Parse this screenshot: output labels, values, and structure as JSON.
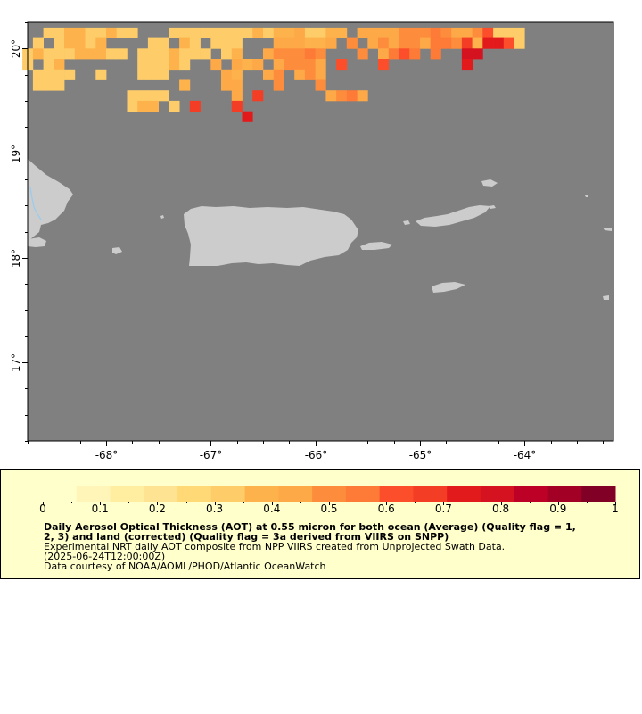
{
  "map": {
    "lon_range": [
      -68.75,
      -63.15
    ],
    "lat_range": [
      16.25,
      20.25
    ],
    "background_color": "#808080",
    "land_color": "#cccccc",
    "lon_ticks": [
      {
        "value": -68,
        "label": "-68°"
      },
      {
        "value": -67,
        "label": "-67°"
      },
      {
        "value": -66,
        "label": "-66°"
      },
      {
        "value": -65,
        "label": "-65°"
      },
      {
        "value": -64,
        "label": "-64°"
      }
    ],
    "lat_ticks": [
      {
        "value": 20,
        "label": "20°"
      },
      {
        "value": 19,
        "label": "19°"
      },
      {
        "value": 18,
        "label": "18°"
      },
      {
        "value": 17,
        "label": "17°"
      }
    ],
    "aot_cells": [
      [
        -68.55,
        20.15,
        0.35
      ],
      [
        -68.45,
        20.15,
        0.35
      ],
      [
        -68.35,
        20.15,
        0.4
      ],
      [
        -68.25,
        20.15,
        0.4
      ],
      [
        -68.15,
        20.15,
        0.35
      ],
      [
        -68.05,
        20.15,
        0.35
      ],
      [
        -67.95,
        20.15,
        0.4
      ],
      [
        -67.85,
        20.15,
        0.35
      ],
      [
        -67.75,
        20.15,
        0.35
      ],
      [
        -67.35,
        20.15,
        0.35
      ],
      [
        -67.25,
        20.15,
        0.35
      ],
      [
        -67.15,
        20.15,
        0.35
      ],
      [
        -67.05,
        20.15,
        0.35
      ],
      [
        -66.95,
        20.15,
        0.35
      ],
      [
        -66.85,
        20.15,
        0.35
      ],
      [
        -66.75,
        20.15,
        0.35
      ],
      [
        -66.65,
        20.15,
        0.35
      ],
      [
        -66.55,
        20.15,
        0.4
      ],
      [
        -66.45,
        20.15,
        0.35
      ],
      [
        -66.35,
        20.15,
        0.4
      ],
      [
        -66.25,
        20.15,
        0.4
      ],
      [
        -66.15,
        20.15,
        0.45
      ],
      [
        -66.05,
        20.15,
        0.35
      ],
      [
        -65.95,
        20.15,
        0.35
      ],
      [
        -65.85,
        20.15,
        0.4
      ],
      [
        -65.75,
        20.15,
        0.4
      ],
      [
        -65.55,
        20.15,
        0.45
      ],
      [
        -65.45,
        20.15,
        0.45
      ],
      [
        -65.35,
        20.15,
        0.45
      ],
      [
        -65.25,
        20.15,
        0.45
      ],
      [
        -65.15,
        20.15,
        0.5
      ],
      [
        -65.05,
        20.15,
        0.5
      ],
      [
        -64.95,
        20.15,
        0.5
      ],
      [
        -64.85,
        20.15,
        0.55
      ],
      [
        -64.75,
        20.15,
        0.5
      ],
      [
        -64.65,
        20.15,
        0.45
      ],
      [
        -64.55,
        20.15,
        0.45
      ],
      [
        -64.45,
        20.15,
        0.5
      ],
      [
        -64.35,
        20.15,
        0.6
      ],
      [
        -64.25,
        20.15,
        0.35
      ],
      [
        -64.15,
        20.15,
        0.35
      ],
      [
        -64.05,
        20.15,
        0.35
      ],
      [
        -68.65,
        20.05,
        0.35
      ],
      [
        -68.45,
        20.05,
        0.35
      ],
      [
        -68.35,
        20.05,
        0.4
      ],
      [
        -68.25,
        20.05,
        0.4
      ],
      [
        -68.15,
        20.05,
        0.35
      ],
      [
        -68.05,
        20.05,
        0.4
      ],
      [
        -67.55,
        20.05,
        0.35
      ],
      [
        -67.45,
        20.05,
        0.35
      ],
      [
        -67.25,
        20.05,
        0.4
      ],
      [
        -67.15,
        20.05,
        0.35
      ],
      [
        -66.95,
        20.05,
        0.35
      ],
      [
        -66.85,
        20.05,
        0.35
      ],
      [
        -66.75,
        20.05,
        0.35
      ],
      [
        -66.35,
        20.05,
        0.45
      ],
      [
        -66.25,
        20.05,
        0.45
      ],
      [
        -66.15,
        20.05,
        0.45
      ],
      [
        -66.05,
        20.05,
        0.4
      ],
      [
        -65.95,
        20.05,
        0.4
      ],
      [
        -65.85,
        20.05,
        0.45
      ],
      [
        -65.65,
        20.05,
        0.5
      ],
      [
        -65.45,
        20.05,
        0.45
      ],
      [
        -65.35,
        20.05,
        0.5
      ],
      [
        -65.25,
        20.05,
        0.45
      ],
      [
        -65.15,
        20.05,
        0.5
      ],
      [
        -65.05,
        20.05,
        0.5
      ],
      [
        -64.95,
        20.05,
        0.45
      ],
      [
        -64.85,
        20.05,
        0.55
      ],
      [
        -64.75,
        20.05,
        0.55
      ],
      [
        -64.65,
        20.05,
        0.5
      ],
      [
        -64.55,
        20.05,
        0.65
      ],
      [
        -64.45,
        20.05,
        0.4
      ],
      [
        -64.35,
        20.05,
        0.75
      ],
      [
        -64.25,
        20.05,
        0.75
      ],
      [
        -64.15,
        20.05,
        0.6
      ],
      [
        -64.05,
        20.05,
        0.35
      ],
      [
        -68.75,
        19.95,
        0.35
      ],
      [
        -68.65,
        19.95,
        0.4
      ],
      [
        -68.55,
        19.95,
        0.35
      ],
      [
        -68.45,
        19.95,
        0.35
      ],
      [
        -68.35,
        19.95,
        0.35
      ],
      [
        -68.25,
        19.95,
        0.4
      ],
      [
        -68.15,
        19.95,
        0.4
      ],
      [
        -68.05,
        19.95,
        0.4
      ],
      [
        -67.95,
        19.95,
        0.35
      ],
      [
        -67.85,
        19.95,
        0.35
      ],
      [
        -67.65,
        19.95,
        0.35
      ],
      [
        -67.55,
        19.95,
        0.35
      ],
      [
        -67.45,
        19.95,
        0.35
      ],
      [
        -67.35,
        19.95,
        0.4
      ],
      [
        -67.25,
        19.95,
        0.35
      ],
      [
        -67.15,
        19.95,
        0.35
      ],
      [
        -67.05,
        19.95,
        0.35
      ],
      [
        -66.85,
        19.95,
        0.35
      ],
      [
        -66.75,
        19.95,
        0.4
      ],
      [
        -66.45,
        19.95,
        0.45
      ],
      [
        -66.35,
        19.95,
        0.5
      ],
      [
        -66.25,
        19.95,
        0.5
      ],
      [
        -66.15,
        19.95,
        0.5
      ],
      [
        -66.05,
        19.95,
        0.55
      ],
      [
        -65.95,
        19.95,
        0.5
      ],
      [
        -65.55,
        19.95,
        0.5
      ],
      [
        -65.35,
        19.95,
        0.45
      ],
      [
        -65.25,
        19.95,
        0.55
      ],
      [
        -65.15,
        19.95,
        0.6
      ],
      [
        -65.05,
        19.95,
        0.55
      ],
      [
        -64.85,
        19.95,
        0.55
      ],
      [
        -64.55,
        19.95,
        0.8
      ],
      [
        -64.45,
        19.95,
        0.8
      ],
      [
        -68.75,
        19.85,
        0.35
      ],
      [
        -68.55,
        19.85,
        0.35
      ],
      [
        -68.45,
        19.85,
        0.4
      ],
      [
        -67.65,
        19.85,
        0.35
      ],
      [
        -67.55,
        19.85,
        0.35
      ],
      [
        -67.45,
        19.85,
        0.35
      ],
      [
        -67.35,
        19.85,
        0.4
      ],
      [
        -67.25,
        19.85,
        0.35
      ],
      [
        -66.95,
        19.85,
        0.45
      ],
      [
        -66.75,
        19.85,
        0.45
      ],
      [
        -66.65,
        19.85,
        0.4
      ],
      [
        -66.55,
        19.85,
        0.45
      ],
      [
        -66.35,
        19.85,
        0.45
      ],
      [
        -66.25,
        19.85,
        0.5
      ],
      [
        -66.15,
        19.85,
        0.5
      ],
      [
        -66.05,
        19.85,
        0.5
      ],
      [
        -65.95,
        19.85,
        0.45
      ],
      [
        -65.75,
        19.85,
        0.6
      ],
      [
        -65.35,
        19.85,
        0.6
      ],
      [
        -64.55,
        19.85,
        0.75
      ],
      [
        -68.65,
        19.75,
        0.35
      ],
      [
        -68.55,
        19.75,
        0.35
      ],
      [
        -68.45,
        19.75,
        0.35
      ],
      [
        -68.35,
        19.75,
        0.35
      ],
      [
        -68.05,
        19.75,
        0.35
      ],
      [
        -67.65,
        19.75,
        0.35
      ],
      [
        -67.55,
        19.75,
        0.35
      ],
      [
        -67.45,
        19.75,
        0.35
      ],
      [
        -66.85,
        19.75,
        0.45
      ],
      [
        -66.75,
        19.75,
        0.4
      ],
      [
        -66.45,
        19.75,
        0.45
      ],
      [
        -66.35,
        19.75,
        0.5
      ],
      [
        -66.15,
        19.75,
        0.45
      ],
      [
        -66.05,
        19.75,
        0.5
      ],
      [
        -65.95,
        19.75,
        0.45
      ],
      [
        -68.65,
        19.65,
        0.35
      ],
      [
        -68.55,
        19.65,
        0.35
      ],
      [
        -68.45,
        19.65,
        0.35
      ],
      [
        -67.25,
        19.65,
        0.4
      ],
      [
        -66.85,
        19.65,
        0.45
      ],
      [
        -66.75,
        19.65,
        0.45
      ],
      [
        -66.35,
        19.65,
        0.5
      ],
      [
        -65.95,
        19.65,
        0.5
      ],
      [
        -67.75,
        19.55,
        0.35
      ],
      [
        -67.65,
        19.55,
        0.35
      ],
      [
        -67.55,
        19.55,
        0.35
      ],
      [
        -67.45,
        19.55,
        0.35
      ],
      [
        -66.75,
        19.55,
        0.45
      ],
      [
        -66.55,
        19.55,
        0.65
      ],
      [
        -65.85,
        19.55,
        0.45
      ],
      [
        -65.75,
        19.55,
        0.5
      ],
      [
        -65.65,
        19.55,
        0.55
      ],
      [
        -65.55,
        19.55,
        0.45
      ],
      [
        -67.75,
        19.45,
        0.35
      ],
      [
        -67.65,
        19.45,
        0.4
      ],
      [
        -67.55,
        19.45,
        0.4
      ],
      [
        -67.35,
        19.45,
        0.35
      ],
      [
        -67.15,
        19.45,
        0.65
      ],
      [
        -66.75,
        19.45,
        0.65
      ],
      [
        -66.65,
        19.35,
        0.75
      ]
    ]
  },
  "colorbar": {
    "colors": [
      "#ffffcc",
      "#fff5b9",
      "#ffeda0",
      "#fee492",
      "#fed976",
      "#fecc68",
      "#feb24c",
      "#fea947",
      "#fd8d3c",
      "#fd7a37",
      "#fc4e2a",
      "#f43d25",
      "#e31a1c",
      "#d5121f",
      "#bd0026",
      "#a30026",
      "#800026"
    ],
    "ticks": [
      "0",
      "0.1",
      "0.2",
      "0.3",
      "0.4",
      "0.5",
      "0.6",
      "0.7",
      "0.8",
      "0.9",
      "1"
    ],
    "range": [
      0,
      1
    ]
  },
  "caption": {
    "title_line1": "Daily Aerosol Optical Thickness (AOT) at 0.55 micron for both ocean (Average) (Quality flag = 1,",
    "title_line2": "2, 3) and land (corrected) (Quality flag = 3a derived from VIIRS on SNPP)",
    "subtitle": "Experimental NRT daily AOT composite from NPP VIIRS created from Unprojected Swath Data.",
    "time": "(2025-06-24T12:00:00Z)",
    "credit": "Data courtesy of NOAA/AOML/PHOD/Atlantic OceanWatch"
  }
}
